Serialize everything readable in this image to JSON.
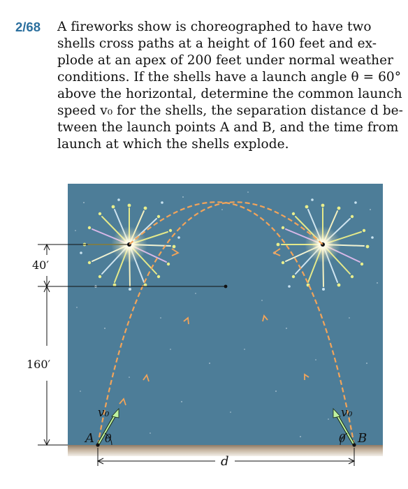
{
  "problem": {
    "number": "2/68",
    "lines": [
      "A fireworks show is choreographed to have two",
      "shells cross paths at a height of 160 feet and ex-",
      "plode at an apex of 200 feet under normal weather",
      "conditions. If the shells have a launch angle θ = 60°",
      "above the horizontal, determine the common launch",
      "speed v₀ for the shells, the separation distance d be-",
      "tween the launch points A and B, and the time from",
      "launch at which the shells explode."
    ]
  },
  "figure": {
    "dim_top": "40′",
    "dim_bottom": "160′",
    "label_A": "A",
    "label_B": "B",
    "theta_left": "θ",
    "theta_right": "θ",
    "v0_left": "v₀",
    "v0_right": "v₀",
    "d_label": "d",
    "colors": {
      "sky": "#4d7d98",
      "ground": "#b8a58f",
      "trajectory": "#f2a45a",
      "velocity": "#bff3a0",
      "problem_number": "#2b6f9e"
    }
  }
}
